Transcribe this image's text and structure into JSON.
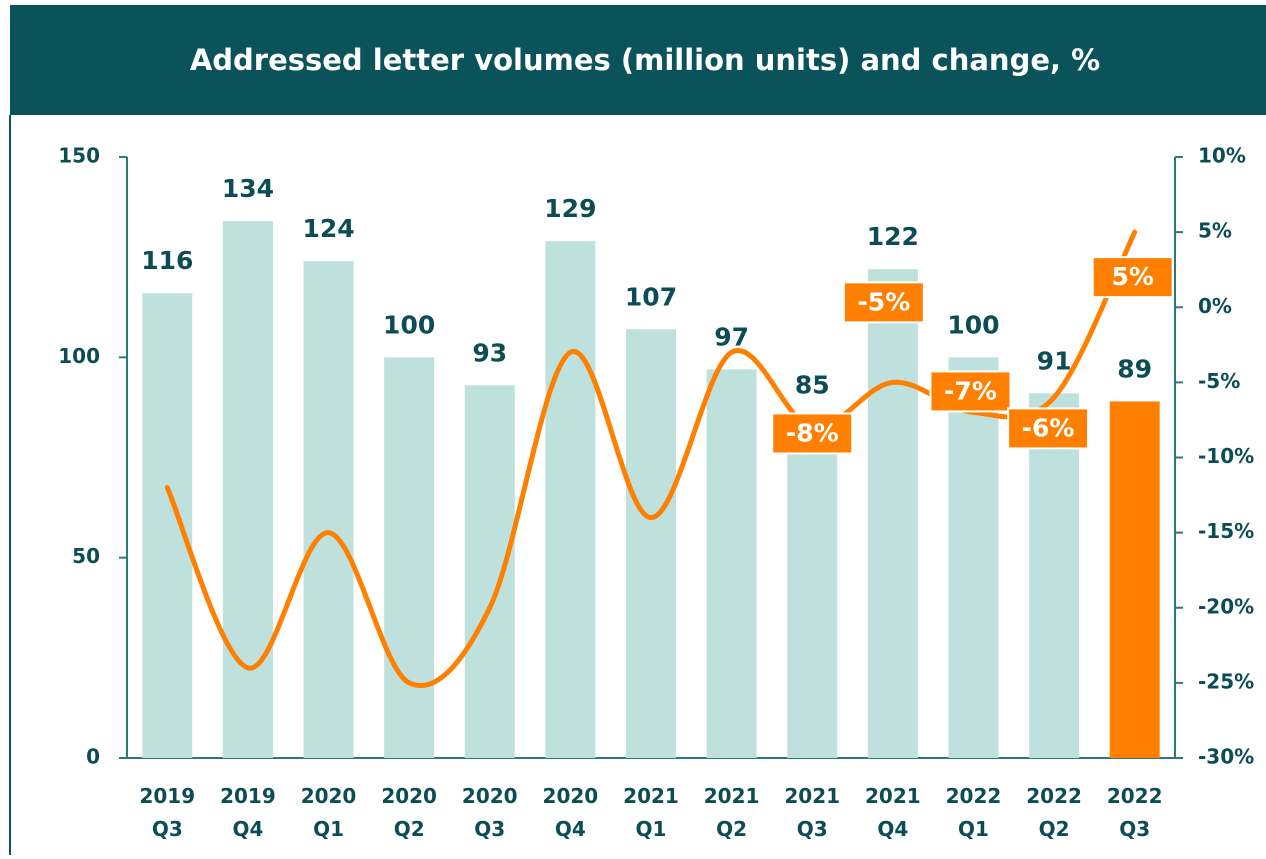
{
  "chart_data": {
    "type": "bar_line",
    "title": "Addressed letter volumes (million units) and change, %",
    "categories": [
      "2019 Q3",
      "2019 Q4",
      "2020 Q1",
      "2020 Q2",
      "2020 Q3",
      "2020 Q4",
      "2021 Q1",
      "2021 Q2",
      "2021 Q3",
      "2021 Q4",
      "2022 Q1",
      "2022 Q2",
      "2022 Q3"
    ],
    "series": [
      {
        "type": "bar",
        "values": [
          116,
          134,
          124,
          100,
          93,
          129,
          107,
          97,
          85,
          122,
          100,
          91,
          89
        ],
        "colors": [
          "#bfe1dd",
          "#bfe1dd",
          "#bfe1dd",
          "#bfe1dd",
          "#bfe1dd",
          "#bfe1dd",
          "#bfe1dd",
          "#bfe1dd",
          "#bfe1dd",
          "#bfe1dd",
          "#bfe1dd",
          "#bfe1dd",
          "#ff8000"
        ]
      },
      {
        "type": "line",
        "axis": "y2",
        "color": "#ff8000",
        "values": [
          -12,
          -24,
          -15,
          -25,
          -20,
          -3,
          -14,
          -3,
          -8,
          -5,
          -7,
          -6,
          5
        ],
        "value_labels": [
          null,
          null,
          null,
          null,
          null,
          null,
          null,
          null,
          "-8%",
          "-5%",
          "-7%",
          "-6%",
          "5%"
        ]
      }
    ],
    "ylim": [
      0,
      150
    ],
    "yticks": [
      0,
      50,
      100,
      150
    ],
    "y2lim": [
      -30,
      10
    ],
    "y2ticks": [
      {
        "value": -30,
        "label": "-30%"
      },
      {
        "value": -25,
        "label": "-25%"
      },
      {
        "value": -20,
        "label": "-20%"
      },
      {
        "value": -15,
        "label": "-15%"
      },
      {
        "value": -10,
        "label": "-10%"
      },
      {
        "value": -5,
        "label": "-5%"
      },
      {
        "value": 0,
        "label": "0%"
      },
      {
        "value": 5,
        "label": "5%"
      },
      {
        "value": 10,
        "label": "10%"
      }
    ]
  }
}
